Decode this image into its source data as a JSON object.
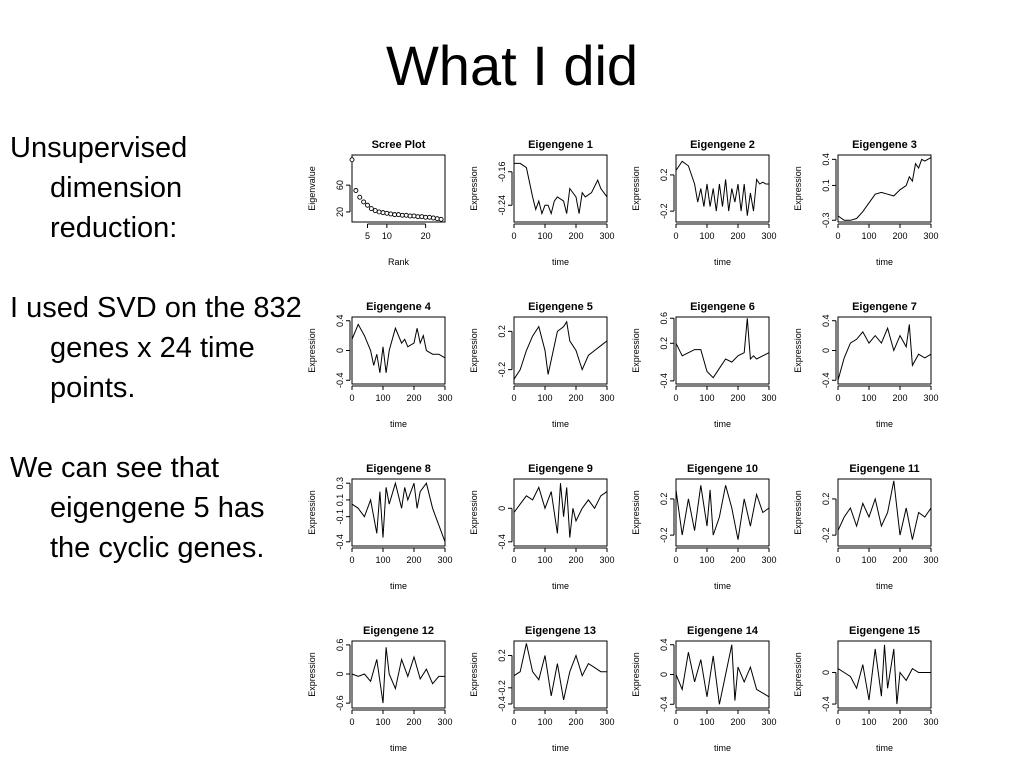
{
  "slide": {
    "title": "What I did",
    "bullets": [
      "Unsupervised dimension reduction:",
      "I used SVD on the 832  genes x 24 time points.",
      "We can see that eigengene 5 has the cyclic genes."
    ]
  },
  "chart_data": [
    {
      "type": "scatter",
      "title": "Scree Plot",
      "xlabel": "Rank",
      "ylabel": "Eigenvalue",
      "xlim": [
        1,
        25
      ],
      "ylim": [
        5,
        105
      ],
      "xticks": [
        5,
        10,
        20
      ],
      "yticks": [
        20,
        60
      ],
      "x": [
        1,
        2,
        3,
        4,
        5,
        6,
        7,
        8,
        9,
        10,
        11,
        12,
        13,
        14,
        15,
        16,
        17,
        18,
        19,
        20,
        21,
        22,
        23,
        24
      ],
      "y": [
        98,
        52,
        42,
        35,
        30,
        25,
        22,
        20,
        19,
        18,
        17,
        16,
        16,
        15,
        15,
        14,
        14,
        13,
        13,
        12,
        12,
        11,
        10,
        9
      ]
    },
    {
      "type": "line",
      "title": "Eigengene 1",
      "xlabel": "time",
      "ylabel": "Expression",
      "xlim": [
        0,
        300
      ],
      "ylim": [
        -0.28,
        -0.12
      ],
      "xticks": [
        0,
        100,
        200,
        300
      ],
      "yticks": [
        -0.16,
        -0.24
      ],
      "x": [
        0,
        20,
        40,
        60,
        70,
        80,
        90,
        100,
        110,
        120,
        130,
        140,
        160,
        170,
        180,
        200,
        210,
        220,
        230,
        250,
        270,
        280,
        300
      ],
      "y": [
        -0.14,
        -0.14,
        -0.15,
        -0.22,
        -0.25,
        -0.23,
        -0.26,
        -0.24,
        -0.24,
        -0.26,
        -0.23,
        -0.22,
        -0.23,
        -0.26,
        -0.2,
        -0.22,
        -0.26,
        -0.21,
        -0.22,
        -0.21,
        -0.18,
        -0.2,
        -0.22
      ]
    },
    {
      "type": "line",
      "title": "Eigengene 2",
      "xlabel": "time",
      "ylabel": "Expression",
      "xlim": [
        0,
        300
      ],
      "ylim": [
        -0.32,
        0.42
      ],
      "xticks": [
        0,
        100,
        200,
        300
      ],
      "yticks": [
        0.2,
        -0.2
      ],
      "x": [
        0,
        20,
        40,
        60,
        70,
        80,
        90,
        100,
        110,
        120,
        130,
        140,
        150,
        160,
        170,
        180,
        190,
        200,
        210,
        220,
        230,
        240,
        250,
        260,
        270,
        280,
        290,
        300
      ],
      "y": [
        0.25,
        0.35,
        0.3,
        0.1,
        -0.1,
        0.05,
        -0.15,
        0.1,
        -0.15,
        0.05,
        -0.2,
        0.1,
        -0.15,
        0.15,
        -0.2,
        0.05,
        -0.1,
        0.1,
        -0.2,
        0.1,
        -0.25,
        0.0,
        -0.2,
        0.15,
        0.1,
        0.12,
        0.1,
        0.1
      ]
    },
    {
      "type": "line",
      "title": "Eigengene 3",
      "xlabel": "time",
      "ylabel": "Expression",
      "xlim": [
        0,
        300
      ],
      "ylim": [
        -0.32,
        0.45
      ],
      "xticks": [
        0,
        100,
        200,
        300
      ],
      "yticks": [
        0.4,
        0.1,
        -0.3
      ],
      "x": [
        0,
        20,
        40,
        60,
        80,
        100,
        120,
        140,
        160,
        180,
        200,
        220,
        230,
        240,
        250,
        260,
        270,
        280,
        300
      ],
      "y": [
        -0.25,
        -0.3,
        -0.3,
        -0.28,
        -0.2,
        -0.1,
        0.0,
        0.02,
        0.0,
        -0.02,
        0.05,
        0.1,
        0.2,
        0.15,
        0.35,
        0.3,
        0.4,
        0.38,
        0.42
      ]
    },
    {
      "type": "line",
      "title": "Eigengene 4",
      "xlabel": "time",
      "ylabel": "Expression",
      "xlim": [
        0,
        300
      ],
      "ylim": [
        -0.45,
        0.45
      ],
      "xticks": [
        0,
        100,
        200,
        300
      ],
      "yticks": [
        0.4,
        0.0,
        -0.4
      ],
      "x": [
        0,
        20,
        40,
        60,
        70,
        80,
        90,
        100,
        110,
        120,
        140,
        160,
        170,
        180,
        200,
        210,
        220,
        230,
        240,
        260,
        280,
        300
      ],
      "y": [
        0.15,
        0.35,
        0.2,
        0.0,
        -0.2,
        -0.05,
        -0.3,
        0.05,
        -0.3,
        0.0,
        0.3,
        0.1,
        0.15,
        0.05,
        0.1,
        0.3,
        0.1,
        0.2,
        0.0,
        -0.05,
        -0.05,
        -0.1
      ]
    },
    {
      "type": "line",
      "title": "Eigengene 5",
      "xlabel": "time",
      "ylabel": "Expression",
      "xlim": [
        0,
        300
      ],
      "ylim": [
        -0.35,
        0.35
      ],
      "xticks": [
        0,
        100,
        200,
        300
      ],
      "yticks": [
        0.2,
        -0.2
      ],
      "x": [
        0,
        20,
        40,
        60,
        80,
        100,
        110,
        120,
        140,
        160,
        170,
        180,
        200,
        220,
        240,
        260,
        280,
        300
      ],
      "y": [
        -0.3,
        -0.2,
        0.0,
        0.15,
        0.25,
        0.0,
        -0.25,
        -0.1,
        0.2,
        0.25,
        0.3,
        0.1,
        0.0,
        -0.2,
        -0.05,
        0.0,
        0.05,
        0.1
      ]
    },
    {
      "type": "line",
      "title": "Eigengene 6",
      "xlabel": "time",
      "ylabel": "Expression",
      "xlim": [
        0,
        300
      ],
      "ylim": [
        -0.45,
        0.62
      ],
      "xticks": [
        0,
        100,
        200,
        300
      ],
      "yticks": [
        0.6,
        0.2,
        -0.4
      ],
      "x": [
        0,
        20,
        40,
        60,
        80,
        100,
        120,
        140,
        160,
        180,
        200,
        220,
        230,
        240,
        250,
        260,
        280,
        300
      ],
      "y": [
        0.2,
        0.0,
        0.05,
        0.1,
        0.1,
        -0.25,
        -0.35,
        -0.2,
        -0.05,
        -0.1,
        0.0,
        0.05,
        0.6,
        -0.05,
        0.0,
        -0.05,
        0.0,
        0.05
      ]
    },
    {
      "type": "line",
      "title": "Eigengene 7",
      "xlabel": "time",
      "ylabel": "Expression",
      "xlim": [
        0,
        300
      ],
      "ylim": [
        -0.45,
        0.45
      ],
      "xticks": [
        0,
        100,
        200,
        300
      ],
      "yticks": [
        0.4,
        0.0,
        -0.4
      ],
      "x": [
        0,
        20,
        40,
        60,
        80,
        100,
        120,
        140,
        160,
        180,
        200,
        220,
        230,
        240,
        260,
        280,
        300
      ],
      "y": [
        -0.4,
        -0.1,
        0.1,
        0.15,
        0.25,
        0.1,
        0.2,
        0.1,
        0.3,
        0.0,
        0.2,
        0.05,
        0.35,
        -0.2,
        -0.05,
        -0.1,
        -0.05
      ]
    },
    {
      "type": "line",
      "title": "Eigengene 8",
      "xlabel": "time",
      "ylabel": "Expression",
      "xlim": [
        0,
        300
      ],
      "ylim": [
        -0.45,
        0.35
      ],
      "xticks": [
        0,
        100,
        200,
        300
      ],
      "yticks": [
        0.3,
        0.1,
        -0.1,
        -0.4
      ],
      "x": [
        0,
        20,
        40,
        60,
        80,
        90,
        100,
        110,
        120,
        140,
        160,
        170,
        180,
        200,
        210,
        220,
        240,
        260,
        280,
        300
      ],
      "y": [
        0.05,
        0.0,
        -0.1,
        0.1,
        -0.3,
        0.2,
        -0.35,
        0.25,
        0.05,
        0.3,
        0.0,
        0.25,
        0.1,
        0.3,
        0.0,
        0.2,
        0.3,
        0.0,
        -0.2,
        -0.4
      ]
    },
    {
      "type": "line",
      "title": "Eigengene 9",
      "xlabel": "time",
      "ylabel": "Expression",
      "xlim": [
        0,
        300
      ],
      "ylim": [
        -0.45,
        0.35
      ],
      "xticks": [
        0,
        100,
        200,
        300
      ],
      "yticks": [
        0.0,
        -0.4
      ],
      "x": [
        0,
        20,
        40,
        60,
        80,
        100,
        120,
        140,
        150,
        160,
        170,
        180,
        190,
        200,
        220,
        240,
        260,
        280,
        300
      ],
      "y": [
        -0.05,
        0.05,
        0.15,
        0.1,
        0.25,
        0.0,
        0.2,
        -0.3,
        0.3,
        -0.1,
        0.25,
        -0.35,
        0.0,
        -0.15,
        0.0,
        0.1,
        0.0,
        0.15,
        0.2
      ]
    },
    {
      "type": "line",
      "title": "Eigengene 10",
      "xlabel": "time",
      "ylabel": "Expression",
      "xlim": [
        0,
        300
      ],
      "ylim": [
        -0.32,
        0.42
      ],
      "xticks": [
        0,
        100,
        200,
        300
      ],
      "yticks": [
        0.2,
        -0.2
      ],
      "x": [
        0,
        20,
        40,
        60,
        80,
        100,
        110,
        120,
        140,
        160,
        180,
        200,
        220,
        240,
        260,
        280,
        300
      ],
      "y": [
        0.3,
        -0.2,
        0.2,
        -0.15,
        0.35,
        -0.1,
        0.3,
        -0.2,
        0.0,
        0.35,
        0.1,
        -0.25,
        0.2,
        -0.1,
        0.25,
        0.05,
        0.1
      ]
    },
    {
      "type": "line",
      "title": "Eigengene 11",
      "xlabel": "time",
      "ylabel": "Expression",
      "xlim": [
        0,
        300
      ],
      "ylim": [
        -0.32,
        0.42
      ],
      "xticks": [
        0,
        100,
        200,
        300
      ],
      "yticks": [
        0.2,
        -0.2
      ],
      "x": [
        0,
        20,
        40,
        60,
        80,
        100,
        120,
        140,
        160,
        180,
        200,
        220,
        240,
        260,
        280,
        300
      ],
      "y": [
        -0.15,
        0.0,
        0.1,
        -0.1,
        0.15,
        0.0,
        0.2,
        -0.1,
        0.05,
        0.4,
        -0.2,
        0.1,
        -0.25,
        0.05,
        0.0,
        0.1
      ]
    },
    {
      "type": "line",
      "title": "Eigengene 12",
      "xlabel": "time",
      "ylabel": "Expression",
      "xlim": [
        0,
        300
      ],
      "ylim": [
        -0.7,
        0.68
      ],
      "xticks": [
        0,
        100,
        200,
        300
      ],
      "yticks": [
        0.6,
        0.0,
        -0.6
      ],
      "x": [
        0,
        20,
        40,
        60,
        80,
        100,
        110,
        120,
        140,
        160,
        180,
        200,
        220,
        240,
        260,
        280,
        300
      ],
      "y": [
        0.0,
        -0.05,
        0.0,
        -0.15,
        0.3,
        -0.6,
        0.55,
        0.0,
        -0.3,
        0.3,
        -0.05,
        0.35,
        -0.1,
        0.1,
        -0.2,
        -0.05,
        -0.05
      ]
    },
    {
      "type": "line",
      "title": "Eigengene 13",
      "xlabel": "time",
      "ylabel": "Expression",
      "xlim": [
        0,
        300
      ],
      "ylim": [
        -0.45,
        0.38
      ],
      "xticks": [
        0,
        100,
        200,
        300
      ],
      "yticks": [
        0.2,
        -0.2,
        -0.4
      ],
      "x": [
        0,
        20,
        40,
        60,
        80,
        100,
        120,
        140,
        160,
        180,
        200,
        220,
        240,
        260,
        280,
        300
      ],
      "y": [
        -0.05,
        0.0,
        0.35,
        0.0,
        -0.1,
        0.2,
        -0.3,
        0.1,
        -0.35,
        0.0,
        0.2,
        -0.05,
        0.1,
        0.05,
        0.0,
        0.0
      ]
    },
    {
      "type": "line",
      "title": "Eigengene 14",
      "xlabel": "time",
      "ylabel": "Expression",
      "xlim": [
        0,
        300
      ],
      "ylim": [
        -0.45,
        0.45
      ],
      "xticks": [
        0,
        100,
        200,
        300
      ],
      "yticks": [
        0.4,
        0.0,
        -0.4
      ],
      "x": [
        0,
        20,
        40,
        60,
        80,
        100,
        120,
        140,
        160,
        180,
        190,
        200,
        220,
        240,
        260,
        280,
        300
      ],
      "y": [
        0.0,
        -0.2,
        0.3,
        -0.1,
        0.2,
        -0.3,
        0.25,
        -0.4,
        0.0,
        0.4,
        -0.35,
        0.1,
        -0.1,
        0.1,
        -0.2,
        -0.25,
        -0.3
      ]
    },
    {
      "type": "line",
      "title": "Eigengene 15",
      "xlabel": "time",
      "ylabel": "Expression",
      "xlim": [
        0,
        300
      ],
      "ylim": [
        -0.45,
        0.4
      ],
      "xticks": [
        0,
        100,
        200,
        300
      ],
      "yticks": [
        0.0,
        -0.4
      ],
      "x": [
        0,
        20,
        40,
        60,
        80,
        100,
        120,
        140,
        150,
        160,
        180,
        190,
        200,
        220,
        240,
        260,
        280,
        300
      ],
      "y": [
        0.05,
        0.0,
        -0.05,
        -0.2,
        0.1,
        -0.35,
        0.3,
        -0.3,
        0.35,
        -0.2,
        0.3,
        -0.4,
        0.0,
        -0.1,
        0.05,
        0.0,
        0.0,
        0.0
      ]
    }
  ]
}
